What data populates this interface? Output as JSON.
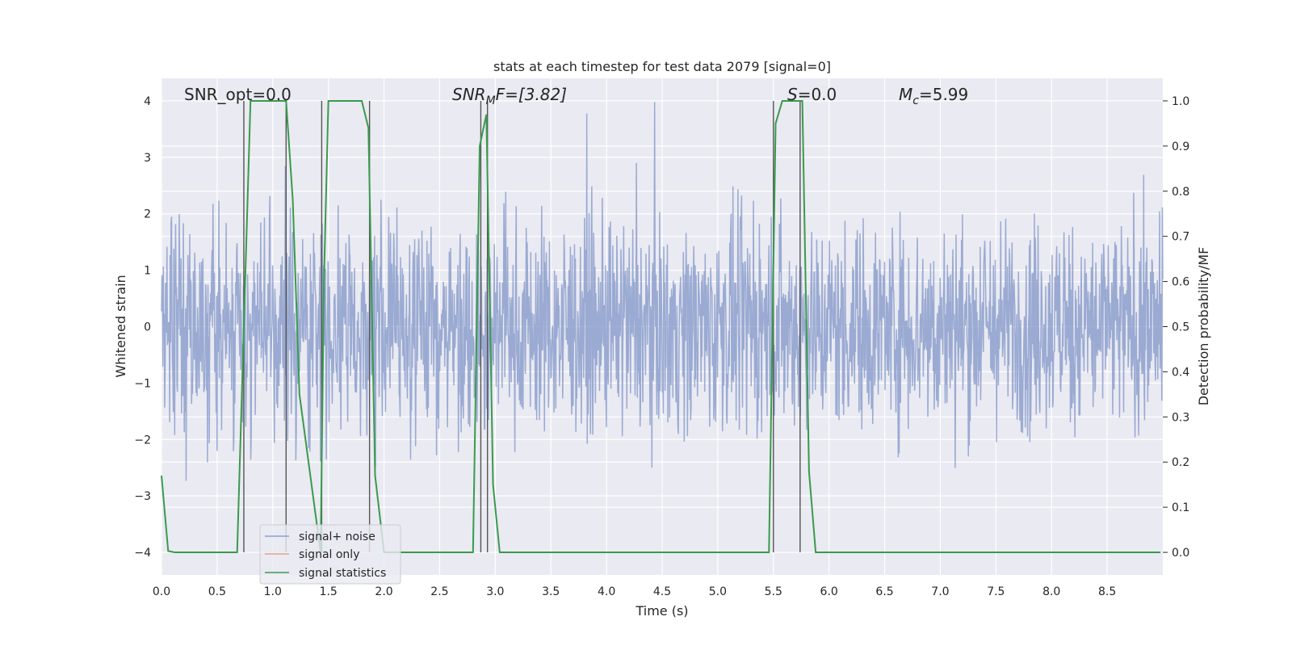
{
  "chart_data": {
    "type": "line",
    "title": "stats at each timestep for test data 2079 [signal=0]",
    "xlabel": "Time (s)",
    "ylabel": "Whitened strain",
    "y2label": "Detection probability/MF",
    "xlim": [
      0.0,
      9.0
    ],
    "ylim": [
      -4.4,
      4.4
    ],
    "y2lim": [
      -0.05,
      1.05
    ],
    "x_ticks": [
      "0.0",
      "0.5",
      "1.0",
      "1.5",
      "2.0",
      "2.5",
      "3.0",
      "3.5",
      "4.0",
      "4.5",
      "5.0",
      "5.5",
      "6.0",
      "6.5",
      "7.0",
      "7.5",
      "8.0",
      "8.5"
    ],
    "y_ticks": [
      "4",
      "3",
      "2",
      "1",
      "0",
      "−1",
      "−2",
      "−3",
      "−4"
    ],
    "y2_ticks": [
      "1.0",
      "0.9",
      "0.8",
      "0.7",
      "0.6",
      "0.5",
      "0.4",
      "0.3",
      "0.2",
      "0.1",
      "0.0"
    ],
    "grid": true,
    "legend_position": "lower-left",
    "annotations": {
      "snr_opt": "SNR_opt=0.0",
      "snr_mf_main": "SNR",
      "snr_mf_sub": "M",
      "snr_mf_rest": "F=[3.82]",
      "s_main": "S",
      "s_rest": "=0.0",
      "mc_main": "M",
      "mc_sub": "c",
      "mc_rest": "=5.99"
    },
    "series": [
      {
        "name": "signal+ noise",
        "color": "#8c9fcc",
        "description_values": "noise envelope mostly within [-2.4, 2.4], peaks to about ±4"
      },
      {
        "name": "signal only",
        "color": "#e5a28a",
        "values": []
      },
      {
        "name": "signal statistics",
        "color": "#3a9a4c",
        "axis": "right",
        "x": [
          0.0,
          0.06,
          0.12,
          0.68,
          0.74,
          0.8,
          1.12,
          1.18,
          1.24,
          1.43,
          1.46,
          1.5,
          1.8,
          1.86,
          1.92,
          2.0,
          2.8,
          2.86,
          2.92,
          2.98,
          3.04,
          3.1,
          5.46,
          5.52,
          5.58,
          5.76,
          5.82,
          5.88,
          8.98
        ],
        "values": [
          0.17,
          0.003,
          0.0,
          0.0,
          0.5,
          1.0,
          1.0,
          0.78,
          0.35,
          0.0,
          0.6,
          1.0,
          1.0,
          0.94,
          0.17,
          0.0,
          0.0,
          0.9,
          0.97,
          0.15,
          0.0,
          0.0,
          0.0,
          0.95,
          1.0,
          1.0,
          0.18,
          0.0,
          0.0
        ]
      }
    ],
    "vertical_markers": [
      0.74,
      1.12,
      1.44,
      1.87,
      2.87,
      2.93,
      5.5,
      5.74
    ],
    "noise_seed": 2079
  }
}
